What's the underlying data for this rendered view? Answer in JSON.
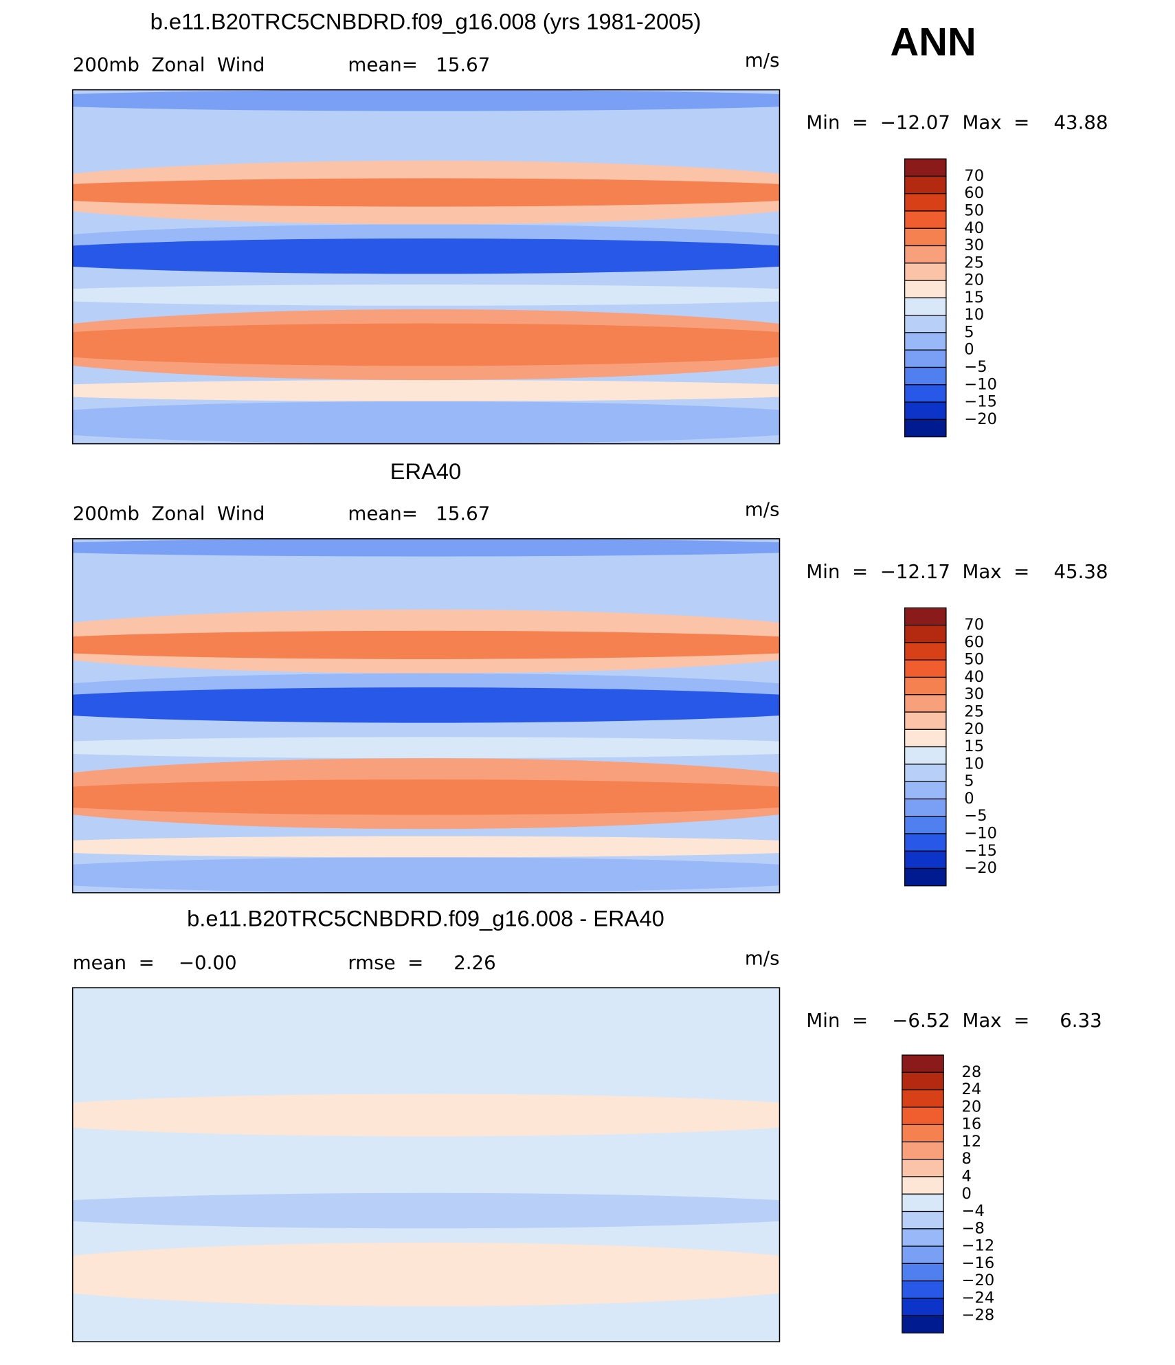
{
  "header": {
    "season": "ANN"
  },
  "palette": [
    "#8b1a1a",
    "#b42a10",
    "#d84018",
    "#f05e30",
    "#f58050",
    "#f8a07c",
    "#fbc4a8",
    "#fde6d6",
    "#d8e8f8",
    "#b8d0f8",
    "#98b8f8",
    "#7aa0f5",
    "#5080f0",
    "#2858e8",
    "#0c34c8",
    "#001a90"
  ],
  "panels": [
    {
      "title": "b.e11.B20TRC5CNBDRD.f09_g16.008 (yrs 1981-2005)",
      "left": "200mb  Zonal  Wind",
      "center": "mean=   15.67",
      "units": "m/s",
      "min_max": "Min  =  −12.07  Max  =    43.88",
      "colorbar": [
        "70",
        "60",
        "50",
        "40",
        "30",
        "25",
        "20",
        "15",
        "10",
        "5",
        "0",
        "−5",
        "−10",
        "−15",
        "−20"
      ]
    },
    {
      "title": "ERA40",
      "left": "200mb  Zonal  Wind",
      "center": "mean=   15.67",
      "units": "m/s",
      "min_max": "Min  =  −12.17  Max  =    45.38",
      "colorbar": [
        "70",
        "60",
        "50",
        "40",
        "30",
        "25",
        "20",
        "15",
        "10",
        "5",
        "0",
        "−5",
        "−10",
        "−15",
        "−20"
      ]
    },
    {
      "title": "b.e11.B20TRC5CNBDRD.f09_g16.008 - ERA40",
      "left": "mean  =    −0.00",
      "center": "rmse  =     2.26",
      "units": "m/s",
      "min_max": "Min  =    −6.52  Max  =     6.33",
      "colorbar": [
        "28",
        "24",
        "20",
        "16",
        "12",
        "8",
        "4",
        "0",
        "−4",
        "−8",
        "−12",
        "−16",
        "−20",
        "−24",
        "−28"
      ]
    }
  ]
}
